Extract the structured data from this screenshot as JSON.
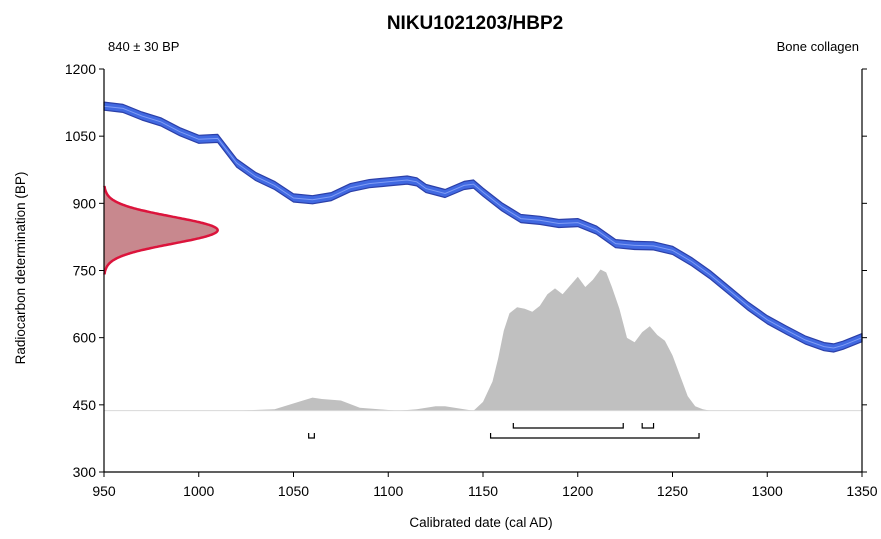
{
  "chart_data": {
    "type": "area",
    "title": "NIKU1021203/HBP2",
    "date_label": "840 ± 30 BP",
    "material_label": "Bone collagen",
    "xlabel": "Calibrated date (cal AD)",
    "ylabel": "Radiocarbon determination (BP)",
    "xlim": [
      950,
      1350
    ],
    "ylim": [
      300,
      1200
    ],
    "xticks": [
      950,
      1000,
      1050,
      1100,
      1150,
      1200,
      1250,
      1300,
      1350
    ],
    "yticks": [
      300,
      450,
      600,
      750,
      900,
      1050,
      1200
    ],
    "colors": {
      "curve": "#4169e1",
      "curve_edge": "#2b3fa8",
      "measurement_fill": "#c8888e",
      "measurement_edge": "#dc143c",
      "posterior_fill": "#c0c0c0"
    },
    "calibration_curve": {
      "x": [
        950,
        960,
        970,
        980,
        990,
        1000,
        1010,
        1020,
        1030,
        1040,
        1050,
        1060,
        1070,
        1080,
        1090,
        1100,
        1110,
        1115,
        1120,
        1130,
        1140,
        1145,
        1150,
        1160,
        1170,
        1180,
        1190,
        1200,
        1210,
        1220,
        1230,
        1240,
        1250,
        1260,
        1270,
        1280,
        1290,
        1300,
        1310,
        1320,
        1330,
        1335,
        1340,
        1350
      ],
      "y": [
        1117,
        1112,
        1095,
        1082,
        1060,
        1043,
        1045,
        990,
        960,
        940,
        912,
        908,
        915,
        935,
        944,
        948,
        952,
        948,
        933,
        922,
        940,
        943,
        925,
        892,
        866,
        862,
        855,
        857,
        840,
        810,
        806,
        805,
        795,
        770,
        740,
        705,
        670,
        640,
        617,
        595,
        580,
        577,
        583,
        600
      ],
      "band_halfwidth": 9
    },
    "measurement": {
      "mean": 840,
      "sd": 30,
      "sigma_range": 3.3,
      "peak_x": 1010
    },
    "posterior": {
      "baseline": 437,
      "peak_height_bp": 325,
      "x": [
        1020,
        1040,
        1055,
        1060,
        1065,
        1075,
        1085,
        1095,
        1105,
        1115,
        1125,
        1130,
        1135,
        1140,
        1145,
        1150,
        1155,
        1158,
        1161,
        1164,
        1168,
        1172,
        1176,
        1180,
        1184,
        1188,
        1192,
        1196,
        1200,
        1204,
        1208,
        1212,
        1215,
        1218,
        1222,
        1226,
        1230,
        1234,
        1238,
        1242,
        1246,
        1250,
        1254,
        1258,
        1262,
        1266,
        1270
      ],
      "y": [
        0,
        0.01,
        0.07,
        0.09,
        0.08,
        0.07,
        0.02,
        0.01,
        0,
        0.01,
        0.03,
        0.03,
        0.02,
        0.01,
        0,
        0.06,
        0.2,
        0.36,
        0.55,
        0.67,
        0.71,
        0.7,
        0.68,
        0.72,
        0.8,
        0.84,
        0.8,
        0.86,
        0.92,
        0.85,
        0.9,
        0.97,
        0.95,
        0.85,
        0.7,
        0.5,
        0.47,
        0.54,
        0.58,
        0.52,
        0.48,
        0.38,
        0.24,
        0.1,
        0.03,
        0.01,
        0
      ]
    },
    "hpd_ranges": {
      "one_sigma": [
        [
          1166,
          1224
        ],
        [
          1234,
          1240
        ]
      ],
      "two_sigma": [
        [
          1058,
          1061
        ],
        [
          1154,
          1264
        ]
      ]
    }
  }
}
